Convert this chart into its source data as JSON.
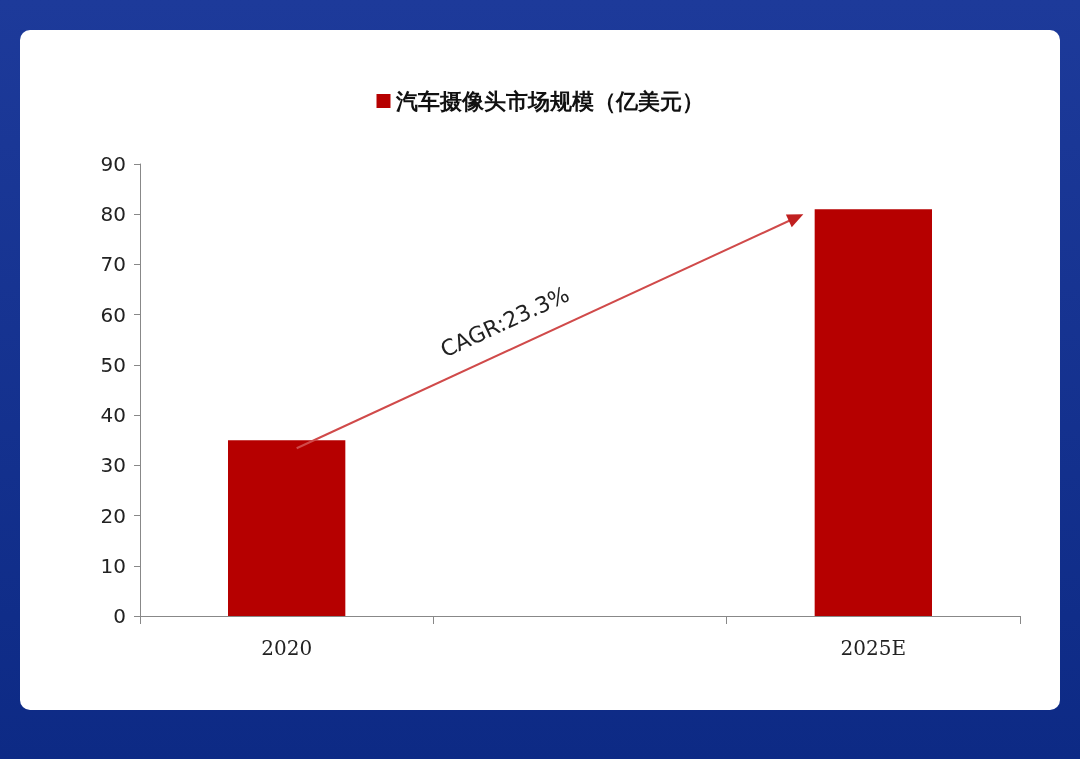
{
  "chart_data": {
    "type": "bar",
    "categories": [
      "2020",
      null,
      "2025E"
    ],
    "series": [
      {
        "name": "汽车摄像头市场规模（亿美元）",
        "color": "#b60000",
        "values": [
          35,
          null,
          81
        ]
      }
    ],
    "ylim": [
      0,
      90
    ],
    "yticks": [
      0,
      10,
      20,
      30,
      40,
      50,
      60,
      70,
      80,
      90
    ],
    "grid": false,
    "legend": "top",
    "annotations": [
      "CAGR:23.3%"
    ]
  }
}
